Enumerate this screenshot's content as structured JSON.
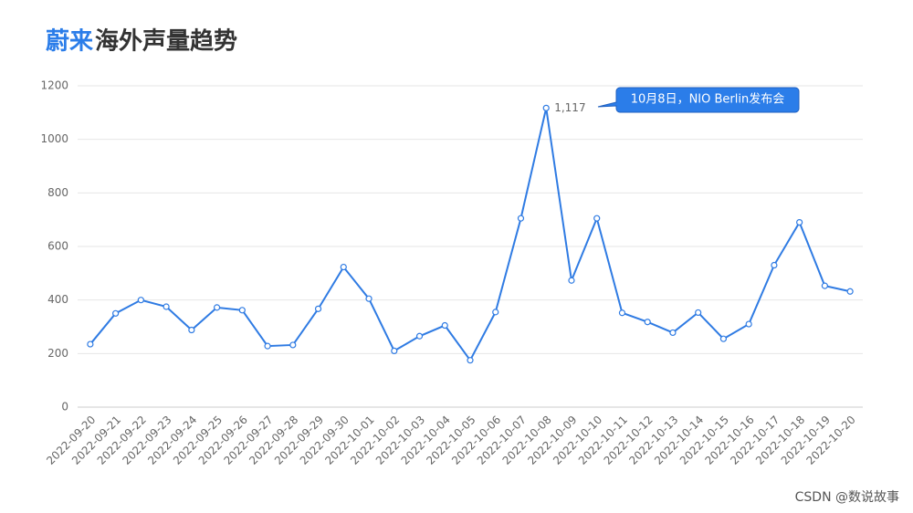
{
  "chart_data": {
    "type": "line",
    "title_highlight": "蔚来",
    "title": "海外声量趋势",
    "categories": [
      "2022-09-20",
      "2022-09-21",
      "2022-09-22",
      "2022-09-23",
      "2022-09-24",
      "2022-09-25",
      "2022-09-26",
      "2022-09-27",
      "2022-09-28",
      "2022-09-29",
      "2022-09-30",
      "2022-10-01",
      "2022-10-02",
      "2022-10-03",
      "2022-10-04",
      "2022-10-05",
      "2022-10-06",
      "2022-10-07",
      "2022-10-08",
      "2022-10-09",
      "2022-10-10",
      "2022-10-11",
      "2022-10-12",
      "2022-10-13",
      "2022-10-14",
      "2022-10-15",
      "2022-10-16",
      "2022-10-17",
      "2022-10-18",
      "2022-10-19",
      "2022-10-20"
    ],
    "values": [
      235,
      350,
      400,
      375,
      288,
      372,
      362,
      228,
      232,
      367,
      523,
      405,
      210,
      265,
      305,
      175,
      355,
      705,
      1117,
      473,
      705,
      352,
      318,
      278,
      353,
      255,
      310,
      530,
      690,
      453,
      432
    ],
    "value_labels": [
      null,
      null,
      null,
      null,
      null,
      null,
      null,
      null,
      null,
      null,
      null,
      null,
      null,
      null,
      null,
      null,
      null,
      null,
      "1,117",
      null,
      null,
      null,
      null,
      null,
      null,
      null,
      null,
      null,
      null,
      null,
      null
    ],
    "color": "#2f7be3",
    "ylim": [
      0,
      1200
    ],
    "yticks": [
      0,
      200,
      400,
      600,
      800,
      1000,
      1200
    ],
    "grid": true,
    "annotation": "10月8日，NIO Berlin发布会",
    "watermark": "CSDN @数说故事"
  }
}
